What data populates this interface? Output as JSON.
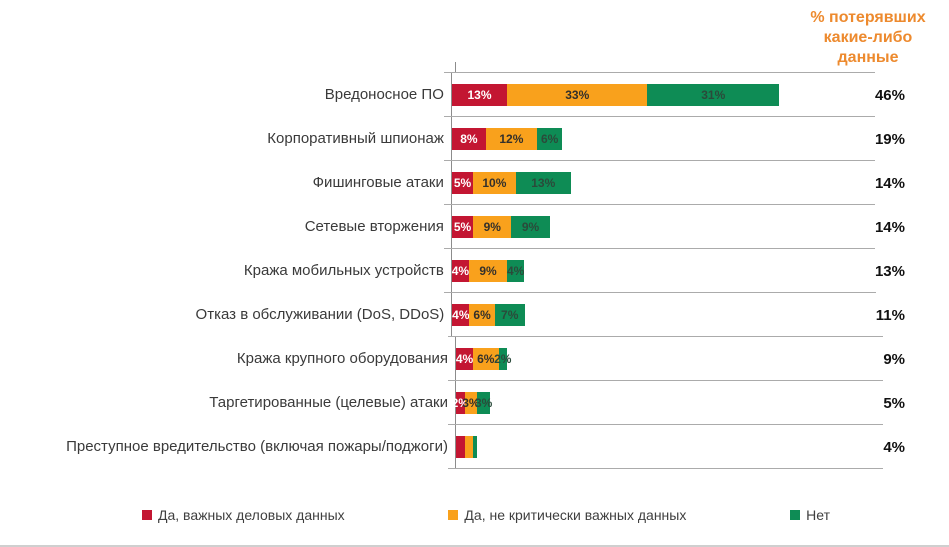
{
  "header": {
    "note": "% потерявших какие-либо данные",
    "color": "#ED8A2E"
  },
  "chart_data": {
    "type": "bar",
    "orientation": "horizontal",
    "stacked": true,
    "value_unit": "%",
    "title": "% потерявших какие-либо данные",
    "axis": {
      "x_min": 0,
      "x_max": 100,
      "gridlines": false,
      "row_separators": true
    },
    "legend_position": "bottom",
    "categories": [
      "Вредоносное ПО",
      "Корпоративный шпионаж",
      "Фишинговые атаки",
      "Сетевые вторжения",
      "Кража мобильных устройств",
      "Отказ в обслуживании (DoS, DDoS)",
      "Кража крупного оборудования",
      "Таргетированные (целевые) атаки",
      "Преступное вредительство (включая пожары/поджоги)"
    ],
    "series": [
      {
        "name": "Да, важных деловых данных",
        "color": "#C31632",
        "label_color": "#ffffff",
        "values": [
          13,
          8,
          5,
          5,
          4,
          4,
          4,
          2,
          2
        ],
        "labels": [
          "13%",
          "8%",
          "5%",
          "5%",
          "4%",
          "4%",
          "4%",
          "2%",
          ""
        ]
      },
      {
        "name": "Да, не критически важных данных",
        "color": "#F9A11C",
        "label_color": "#33302b",
        "values": [
          33,
          12,
          10,
          9,
          9,
          6,
          6,
          3,
          2
        ],
        "labels": [
          "33%",
          "12%",
          "10%",
          "9%",
          "9%",
          "6%",
          "6%",
          "3%",
          ""
        ]
      },
      {
        "name": "Нет",
        "color": "#0E8C55",
        "label_color": "#2b4a3a",
        "values": [
          31,
          6,
          13,
          9,
          4,
          7,
          2,
          3,
          1
        ],
        "labels": [
          "31%",
          "6%",
          "13%",
          "9%",
          "4%",
          "7%",
          "2%",
          "3%",
          ""
        ]
      }
    ],
    "totals": [
      "46%",
      "19%",
      "14%",
      "14%",
      "13%",
      "11%",
      "9%",
      "5%",
      "4%"
    ]
  },
  "legend": {
    "items": [
      {
        "label": "Да, важных деловых данных",
        "color": "#C31632"
      },
      {
        "label": "Да, не критически важных данных",
        "color": "#F9A11C"
      },
      {
        "label": "Нет",
        "color": "#0E8C55"
      }
    ]
  }
}
